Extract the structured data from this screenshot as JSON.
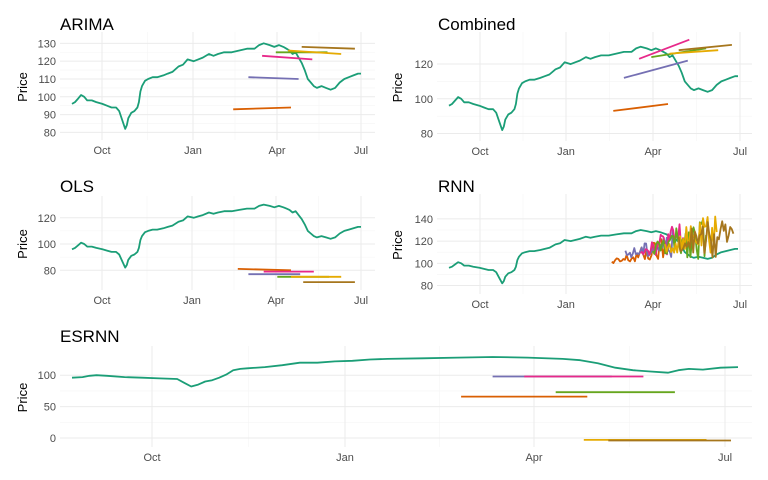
{
  "chart_data": [
    {
      "type": "line",
      "title": "ARIMA",
      "xlabel": "",
      "ylabel": "Price",
      "ylim": [
        78,
        133
      ],
      "y_ticks": [
        80,
        90,
        100,
        110,
        120,
        130
      ],
      "x_ticks": [
        "Oct",
        "Jan",
        "Apr",
        "Jul"
      ],
      "grid": true,
      "legend": "none",
      "actual_color": "#1b9e77",
      "series": [
        {
          "color": "#d95f02",
          "x": [
            10.6,
            14.4
          ],
          "y": [
            93,
            94
          ]
        },
        {
          "color": "#7570b3",
          "x": [
            11.6,
            14.9
          ],
          "y": [
            111,
            110
          ]
        },
        {
          "color": "#e7298a",
          "x": [
            12.5,
            15.8
          ],
          "y": [
            123,
            121
          ]
        },
        {
          "color": "#66a61e",
          "x": [
            13.4,
            16.8
          ],
          "y": [
            125,
            125
          ]
        },
        {
          "color": "#e6ab02",
          "x": [
            14.2,
            17.7
          ],
          "y": [
            126,
            124
          ]
        },
        {
          "color": "#a6761d",
          "x": [
            15.1,
            18.6
          ],
          "y": [
            128,
            127
          ]
        }
      ]
    },
    {
      "type": "line",
      "title": "Combined",
      "xlabel": "",
      "ylabel": "Price",
      "ylim": [
        78,
        135
      ],
      "y_ticks": [
        80,
        100,
        120
      ],
      "x_ticks": [
        "Oct",
        "Jan",
        "Apr",
        "Jul"
      ],
      "grid": true,
      "legend": "none",
      "actual_color": "#1b9e77",
      "series": [
        {
          "color": "#d95f02",
          "x": [
            10.8,
            14.4
          ],
          "y": [
            93,
            97
          ]
        },
        {
          "color": "#7570b3",
          "x": [
            11.5,
            15.7
          ],
          "y": [
            112,
            122
          ]
        },
        {
          "color": "#e7298a",
          "x": [
            12.5,
            15.8
          ],
          "y": [
            123,
            134
          ]
        },
        {
          "color": "#66a61e",
          "x": [
            13.3,
            16.9
          ],
          "y": [
            124,
            129
          ]
        },
        {
          "color": "#e6ab02",
          "x": [
            14.5,
            17.7
          ],
          "y": [
            126,
            128
          ]
        },
        {
          "color": "#a6761d",
          "x": [
            15.1,
            18.6
          ],
          "y": [
            128,
            131
          ]
        }
      ]
    },
    {
      "type": "line",
      "title": "OLS",
      "xlabel": "",
      "ylabel": "Price",
      "ylim": [
        68,
        132
      ],
      "y_ticks": [
        80,
        100,
        120
      ],
      "x_ticks": [
        "Oct",
        "Jan",
        "Apr",
        "Jul"
      ],
      "grid": true,
      "legend": "none",
      "actual_color": "#1b9e77",
      "series": [
        {
          "color": "#d95f02",
          "x": [
            10.9,
            14.4
          ],
          "y": [
            81,
            80
          ]
        },
        {
          "color": "#7570b3",
          "x": [
            11.6,
            15.0
          ],
          "y": [
            77,
            77
          ]
        },
        {
          "color": "#e7298a",
          "x": [
            12.6,
            15.9
          ],
          "y": [
            79,
            79
          ]
        },
        {
          "color": "#66a61e",
          "x": [
            13.5,
            16.9
          ],
          "y": [
            75,
            75
          ]
        },
        {
          "color": "#e6ab02",
          "x": [
            14.4,
            17.7
          ],
          "y": [
            75,
            75
          ]
        },
        {
          "color": "#a6761d",
          "x": [
            15.2,
            18.6
          ],
          "y": [
            71,
            71
          ]
        }
      ]
    },
    {
      "type": "line",
      "title": "RNN",
      "xlabel": "",
      "ylabel": "Price",
      "ylim": [
        76,
        157
      ],
      "y_ticks": [
        80,
        100,
        120,
        140
      ],
      "x_ticks": [
        "Oct",
        "Jan",
        "Apr",
        "Jul"
      ],
      "grid": true,
      "legend": "none",
      "actual_color": "#1b9e77",
      "series": [
        {
          "color": "#d95f02",
          "x": [
            10.7,
            14.4
          ],
          "y": [
            100,
            114
          ],
          "noise": 8
        },
        {
          "color": "#7570b3",
          "x": [
            11.6,
            14.9
          ],
          "y": [
            108,
            118
          ],
          "noise": 9
        },
        {
          "color": "#e7298a",
          "x": [
            12.6,
            15.4
          ],
          "y": [
            112,
            124
          ],
          "noise": 12
        },
        {
          "color": "#66a61e",
          "x": [
            13.4,
            16.9
          ],
          "y": [
            112,
            126
          ],
          "noise": 16
        },
        {
          "color": "#e6ab02",
          "x": [
            14.2,
            17.6
          ],
          "y": [
            115,
            128
          ],
          "noise": 16
        },
        {
          "color": "#a6761d",
          "x": [
            15.1,
            18.7
          ],
          "y": [
            118,
            126
          ],
          "noise": 18
        }
      ]
    },
    {
      "type": "line",
      "title": "ESRNN",
      "xlabel": "",
      "ylabel": "Price",
      "ylim": [
        -8,
        137
      ],
      "y_ticks": [
        0,
        50,
        100
      ],
      "x_ticks": [
        "Oct",
        "Jan",
        "Apr",
        "Jul"
      ],
      "grid": true,
      "legend": "none",
      "actual_color": "#1b9e77",
      "series": [
        {
          "color": "#d95f02",
          "x": [
            11.1,
            14.7
          ],
          "y": [
            66,
            66
          ]
        },
        {
          "color": "#7570b3",
          "x": [
            12.0,
            15.4
          ],
          "y": [
            98,
            98
          ]
        },
        {
          "color": "#e7298a",
          "x": [
            12.9,
            16.3
          ],
          "y": [
            98,
            98
          ]
        },
        {
          "color": "#66a61e",
          "x": [
            13.8,
            17.2
          ],
          "y": [
            73,
            73
          ]
        },
        {
          "color": "#e6ab02",
          "x": [
            14.6,
            18.1
          ],
          "y": [
            -3,
            -3
          ]
        },
        {
          "color": "#a6761d",
          "x": [
            15.3,
            18.8
          ],
          "y": [
            -4,
            -4
          ]
        }
      ],
      "actual": {
        "x": [
          0,
          0.3,
          0.5,
          0.7,
          1.0,
          1.5,
          2.0,
          2.5,
          3.0,
          3.2,
          3.4,
          3.6,
          3.8,
          4.0,
          4.2,
          4.4,
          4.6,
          4.8,
          5.0,
          5.5,
          6.0,
          6.5,
          7.0,
          7.5,
          8.0,
          8.5,
          9.0,
          10.0,
          11.0,
          12.0,
          13.0,
          14.0,
          14.5,
          15.0,
          15.5,
          16.0,
          16.5,
          17.0,
          17.3,
          17.6,
          18.0,
          18.5,
          19.0
        ],
        "y": [
          96,
          97,
          99,
          100,
          99,
          97,
          96,
          95,
          94,
          88,
          82,
          85,
          90,
          92,
          96,
          101,
          108,
          110,
          111,
          113,
          116,
          120,
          120,
          122,
          123,
          125,
          126,
          127,
          128,
          129,
          128,
          126,
          124,
          119,
          112,
          108,
          106,
          104,
          108,
          110,
          109,
          112,
          113
        ]
      }
    }
  ],
  "actual_series": {
    "x": [
      0,
      0.2,
      0.4,
      0.6,
      0.8,
      1.0,
      1.3,
      1.6,
      2.0,
      2.3,
      2.6,
      2.9,
      3.1,
      3.3,
      3.5,
      3.6,
      3.7,
      3.9,
      4.1,
      4.3,
      4.4,
      4.5,
      4.6,
      4.8,
      5.0,
      5.3,
      5.6,
      6.0,
      6.3,
      6.6,
      7.0,
      7.3,
      7.6,
      8.0,
      8.3,
      8.6,
      9.0,
      9.3,
      9.6,
      10.0,
      10.5,
      11.0,
      11.5,
      12.0,
      12.3,
      12.6,
      13.0,
      13.3,
      13.6,
      13.9,
      14.1,
      14.3,
      14.5,
      14.7,
      14.9,
      15.1,
      15.3,
      15.5,
      15.7,
      15.9,
      16.1,
      16.4,
      16.7,
      17.0,
      17.3,
      17.6,
      17.9,
      18.2,
      18.5,
      18.8,
      19.0
    ],
    "y": [
      96,
      97,
      99,
      101,
      100,
      98,
      98,
      97,
      96,
      95,
      94,
      94,
      92,
      87,
      82,
      84,
      88,
      91,
      92,
      94,
      97,
      103,
      106,
      109,
      110,
      111,
      111,
      112,
      113,
      114,
      117,
      118,
      121,
      120,
      121,
      122,
      124,
      123,
      124,
      125,
      125,
      126,
      127,
      127,
      129,
      130,
      129,
      128,
      129,
      128,
      127,
      126,
      124,
      125,
      122,
      119,
      115,
      110,
      108,
      106,
      105,
      106,
      105,
      104,
      105,
      108,
      110,
      111,
      112,
      113,
      113
    ]
  },
  "x_tick_positions": [
    2.5,
    9.5,
    16.0,
    22.5
  ]
}
